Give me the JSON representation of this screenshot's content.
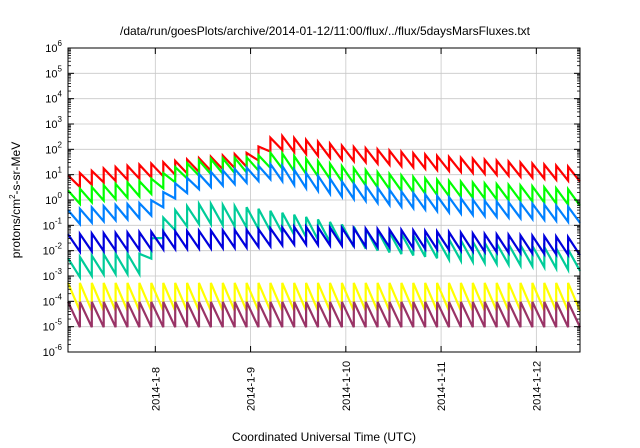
{
  "chart_data": {
    "type": "line",
    "title": "/data/run/goesPlots/archive/2014-01-12/11:00/flux/../flux/5daysMarsFluxes.txt",
    "xlabel": "Coordinated Universal Time (UTC)",
    "ylabel_main": "protons/cm",
    "ylabel_sup": "2",
    "ylabel_rest": "-s-sr-MeV",
    "yscale": "log",
    "ylim_exp": [
      -6,
      6
    ],
    "y_ticks": [
      {
        "base": "10",
        "exp": "-6"
      },
      {
        "base": "10",
        "exp": "-5"
      },
      {
        "base": "10",
        "exp": "-4"
      },
      {
        "base": "10",
        "exp": "-3"
      },
      {
        "base": "10",
        "exp": "-2"
      },
      {
        "base": "10",
        "exp": "-1"
      },
      {
        "base": "10",
        "exp": "0"
      },
      {
        "base": "10",
        "exp": "1"
      },
      {
        "base": "10",
        "exp": "2"
      },
      {
        "base": "10",
        "exp": "3"
      },
      {
        "base": "10",
        "exp": "4"
      },
      {
        "base": "10",
        "exp": "5"
      },
      {
        "base": "10",
        "exp": "6"
      }
    ],
    "x_ticks": [
      "2014-1-8",
      "2014-1-9",
      "2014-1-10",
      "2014-1-11",
      "2014-1-12"
    ],
    "xlim": [
      "2014-01-07 02:00",
      "2014-01-12 11:00"
    ],
    "grid": true,
    "legend": "none",
    "series": [
      {
        "color": "#ff0000",
        "sawtooth_amp": 0.55,
        "x": [
          "2014-01-07 02:00",
          "2014-01-07 12:00",
          "2014-01-08 00:00",
          "2014-01-08 12:00",
          "2014-01-09 00:00",
          "2014-01-09 06:00",
          "2014-01-09 12:00",
          "2014-01-10 00:00",
          "2014-01-10 12:00",
          "2014-01-11 00:00",
          "2014-01-11 12:00",
          "2014-01-12 00:00",
          "2014-01-12 11:00"
        ],
        "y": [
          5,
          10,
          15,
          25,
          40,
          200,
          140,
          70,
          45,
          28,
          20,
          14,
          10
        ]
      },
      {
        "color": "#00ff00",
        "sawtooth_amp": 0.6,
        "x": [
          "2014-01-07 02:00",
          "2014-01-07 12:00",
          "2014-01-07 22:00",
          "2014-01-08 00:00",
          "2014-01-08 06:00",
          "2014-01-08 12:00",
          "2014-01-09 00:00",
          "2014-01-09 06:00",
          "2014-01-09 12:00",
          "2014-01-10 00:00",
          "2014-01-10 12:00",
          "2014-01-11 00:00",
          "2014-01-11 12:00",
          "2014-01-12 00:00",
          "2014-01-12 11:00"
        ],
        "y": [
          1.2,
          2,
          3,
          4,
          12,
          20,
          25,
          40,
          25,
          10,
          5,
          3,
          2.2,
          1.7,
          1.2
        ]
      },
      {
        "color": "#0080ff",
        "sawtooth_amp": 0.6,
        "x": [
          "2014-01-07 02:00",
          "2014-01-07 12:00",
          "2014-01-07 22:00",
          "2014-01-08 00:00",
          "2014-01-08 06:00",
          "2014-01-08 12:00",
          "2014-01-09 00:00",
          "2014-01-09 06:00",
          "2014-01-09 12:00",
          "2014-01-10 00:00",
          "2014-01-10 12:00",
          "2014-01-11 00:00",
          "2014-01-11 12:00",
          "2014-01-12 00:00",
          "2014-01-12 11:00"
        ],
        "y": [
          0.2,
          0.3,
          0.4,
          0.6,
          3,
          6,
          10,
          14,
          7,
          2.5,
          1.2,
          0.7,
          0.45,
          0.35,
          0.25
        ]
      },
      {
        "color": "#00cc99",
        "sawtooth_amp": 0.8,
        "x": [
          "2014-01-07 02:00",
          "2014-01-07 12:00",
          "2014-01-07 22:00",
          "2014-01-08 00:00",
          "2014-01-08 06:00",
          "2014-01-08 12:00",
          "2014-01-09 00:00",
          "2014-01-09 12:00",
          "2014-01-10 00:00",
          "2014-01-10 12:00",
          "2014-01-11 00:00",
          "2014-01-11 12:00",
          "2014-01-12 00:00",
          "2014-01-12 11:00"
        ],
        "y": [
          0.002,
          0.003,
          0.003,
          0.05,
          0.2,
          0.3,
          0.2,
          0.1,
          0.04,
          0.02,
          0.012,
          0.008,
          0.006,
          0.004
        ]
      },
      {
        "color": "#0000dd",
        "sawtooth_amp": 0.7,
        "x": [
          "2014-01-07 02:00",
          "2014-01-07 12:00",
          "2014-01-08 00:00",
          "2014-01-09 00:00",
          "2014-01-09 12:00",
          "2014-01-10 00:00",
          "2014-01-10 12:00",
          "2014-01-11 00:00",
          "2014-01-11 12:00",
          "2014-01-12 00:00",
          "2014-01-12 11:00"
        ],
        "y": [
          0.02,
          0.022,
          0.025,
          0.03,
          0.04,
          0.035,
          0.03,
          0.025,
          0.02,
          0.017,
          0.015
        ]
      },
      {
        "color": "#ffff00",
        "sawtooth_amp": 1.1,
        "x": [
          "2014-01-07 02:00",
          "2014-01-12 11:00"
        ],
        "y": [
          0.00015,
          0.00015
        ]
      },
      {
        "color": "#993366",
        "sawtooth_amp": 1.0,
        "x": [
          "2014-01-07 02:00",
          "2014-01-12 11:00"
        ],
        "y": [
          3e-05,
          3e-05
        ]
      }
    ]
  }
}
